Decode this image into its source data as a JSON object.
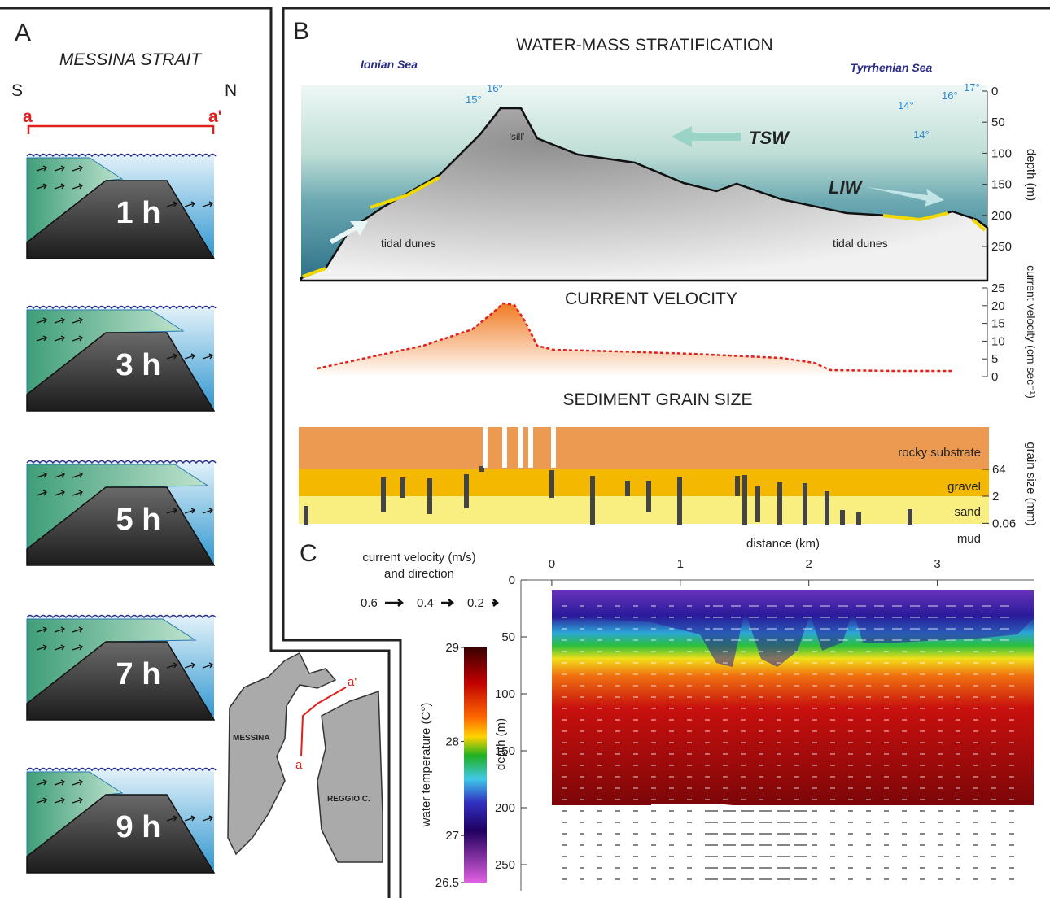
{
  "panel_a": {
    "label": "A",
    "title": "MESSINA STRAIT",
    "south": "S",
    "north": "N",
    "section_start": "a",
    "section_end": "a'",
    "stages": [
      "1 h",
      "3 h",
      "5 h",
      "7 h",
      "9 h"
    ]
  },
  "map": {
    "cities": [
      "MESSINA",
      "REGGIO C."
    ],
    "section_start": "a",
    "section_end": "a'"
  },
  "panel_b": {
    "label": "B",
    "stratification": {
      "title": "WATER-MASS STRATIFICATION",
      "west": "Ionian Sea",
      "east": "Tyrrhenian Sea",
      "isotherms": [
        "15°",
        "16°",
        "16°",
        "17°",
        "14°",
        "14°"
      ],
      "sill": "'sill'",
      "masses": [
        "TSW",
        "LIW"
      ],
      "dunes": [
        "tidal dunes",
        "tidal dunes"
      ],
      "axis_label": "depth (m)",
      "ticks": [
        0,
        50,
        100,
        150,
        200,
        250
      ],
      "range": [
        0,
        250
      ]
    },
    "velocity": {
      "title": "CURRENT VELOCITY",
      "axis_label": "current velocity (cm sec⁻¹)",
      "ticks": [
        0,
        5,
        10,
        15,
        20,
        25
      ],
      "range": [
        0,
        25
      ]
    },
    "grain_size": {
      "title": "SEDIMENT GRAIN SIZE",
      "classes": [
        "rocky substrate",
        "gravel",
        "sand",
        "mud"
      ],
      "limits": [
        64,
        2,
        0.06
      ],
      "axis_label": "grain size (mm)",
      "x_label": "distance (km)"
    }
  },
  "panel_c": {
    "label": "C",
    "legend_title": [
      "current velocity (m/s)",
      "and direction"
    ],
    "legend_speeds": [
      0.6,
      0.4,
      0.2
    ],
    "colorbar": {
      "label": "water temperature (C°)",
      "ticks": [
        29,
        28,
        27,
        26.5
      ],
      "range": [
        26.5,
        29
      ]
    },
    "xticks": [
      0,
      1,
      2,
      3
    ],
    "xlim": [
      -0.24,
      3.75
    ],
    "yticks": [
      0,
      50,
      100,
      150,
      200,
      250
    ],
    "ylim": [
      0,
      270
    ],
    "ylabel": "depth (m)"
  }
}
